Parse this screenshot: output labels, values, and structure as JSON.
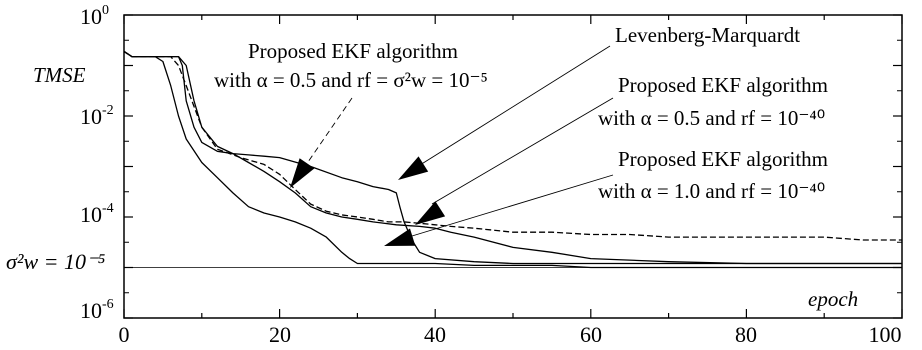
{
  "chart_data": {
    "type": "line",
    "ylabel": "TMSE",
    "xlabel": "epoch",
    "y_scale": "log",
    "xlim": [
      0,
      100
    ],
    "ylim": [
      1e-06,
      1
    ],
    "x_ticks": [
      "0",
      "20",
      "40",
      "60",
      "80",
      "100"
    ],
    "y_tick_labels": [
      {
        "base": "10",
        "exp": "0"
      },
      {
        "base": "10",
        "exp": "-2"
      },
      {
        "base": "10",
        "exp": "-4"
      },
      {
        "base": "10",
        "exp": "-6"
      }
    ],
    "reference": {
      "label": "σ²w = 10⁻⁵",
      "value": 1e-05
    },
    "annotations": [
      {
        "line1": "Proposed EKF algorithm",
        "line2": "with α = 0.5 and rf = σ²w = 10⁻⁵"
      },
      {
        "line1": "Levenberg-Marquardt",
        "line2": ""
      },
      {
        "line1": "Proposed EKF algorithm",
        "line2": "with α = 0.5 and rf = 10⁻⁴⁰"
      },
      {
        "line1": "Proposed EKF algorithm",
        "line2": "with α = 1.0 and rf = 10⁻⁴⁰"
      }
    ],
    "series": [
      {
        "dashed": true,
        "x": [
          0,
          1,
          2,
          3,
          5,
          6,
          7,
          8,
          10,
          12,
          15,
          18,
          20,
          22,
          24,
          26,
          28,
          30,
          32,
          34,
          36,
          38,
          40,
          42,
          45,
          50,
          55,
          60,
          65,
          70,
          75,
          80,
          85,
          90,
          95,
          100
        ],
        "y": [
          0.19,
          0.15,
          0.15,
          0.15,
          0.15,
          0.15,
          0.1,
          0.04,
          0.006,
          0.0022,
          0.0015,
          0.0011,
          0.0007,
          0.00035,
          0.00018,
          0.00013,
          0.00011,
          0.0001,
          9e-05,
          8e-05,
          8e-05,
          7.5e-05,
          7e-05,
          6.5e-05,
          6e-05,
          5e-05,
          5e-05,
          4.5e-05,
          4.5e-05,
          4e-05,
          4e-05,
          4e-05,
          4e-05,
          4e-05,
          3.5e-05,
          3.5e-05
        ]
      },
      {
        "dashed": false,
        "x": [
          0,
          1,
          2,
          3,
          5,
          6,
          7,
          7.5,
          8,
          9,
          10,
          12,
          14,
          16,
          18,
          20,
          24,
          28,
          30,
          32,
          34,
          35,
          35.5,
          36,
          37,
          38,
          40,
          45,
          50,
          55,
          60,
          65,
          70,
          75,
          80,
          85,
          90,
          95,
          100
        ],
        "y": [
          0.19,
          0.15,
          0.15,
          0.15,
          0.15,
          0.15,
          0.15,
          0.1,
          0.02,
          0.006,
          0.003,
          0.002,
          0.0018,
          0.0017,
          0.0016,
          0.0015,
          0.001,
          0.0006,
          0.0005,
          0.0004,
          0.00035,
          0.0003,
          0.00015,
          8e-05,
          3.5e-05,
          2e-05,
          1.5e-05,
          1.3e-05,
          1.2e-05,
          1.2e-05,
          1.2e-05,
          1.2e-05,
          1.2e-05,
          1.2e-05,
          1.2e-05,
          1.2e-05,
          1.2e-05,
          1.2e-05,
          1.2e-05
        ]
      },
      {
        "dashed": false,
        "x": [
          0,
          1,
          2,
          3,
          5,
          6,
          7,
          8,
          9,
          10,
          12,
          14,
          16,
          18,
          20,
          22,
          24,
          26,
          28,
          30,
          32,
          35,
          38,
          40,
          42,
          45,
          50,
          55,
          60,
          70,
          80,
          90,
          100
        ],
        "y": [
          0.19,
          0.15,
          0.15,
          0.15,
          0.15,
          0.15,
          0.15,
          0.1,
          0.02,
          0.006,
          0.0025,
          0.0018,
          0.0012,
          0.0008,
          0.0005,
          0.0003,
          0.00016,
          0.00012,
          0.0001,
          9e-05,
          8e-05,
          7e-05,
          6.5e-05,
          6e-05,
          5e-05,
          4e-05,
          2.5e-05,
          2e-05,
          1.5e-05,
          1.3e-05,
          1.2e-05,
          1.2e-05,
          1.2e-05
        ]
      },
      {
        "dashed": false,
        "x": [
          0,
          1,
          2,
          3,
          4,
          5,
          6,
          7,
          8,
          10,
          12,
          14,
          16,
          18,
          20,
          22,
          24,
          26,
          28,
          29,
          30,
          32,
          35,
          40,
          45,
          50,
          55,
          60,
          70,
          80,
          90,
          100
        ],
        "y": [
          0.19,
          0.15,
          0.15,
          0.15,
          0.15,
          0.12,
          0.04,
          0.01,
          0.0035,
          0.0012,
          0.0006,
          0.0003,
          0.00016,
          0.00012,
          0.0001,
          8e-05,
          6e-05,
          4e-05,
          2e-05,
          1.5e-05,
          1.2e-05,
          1.2e-05,
          1.2e-05,
          1.2e-05,
          1.1e-05,
          1.1e-05,
          1.1e-05,
          1e-05,
          1e-05,
          1e-05,
          1e-05,
          1e-05
        ]
      }
    ]
  }
}
